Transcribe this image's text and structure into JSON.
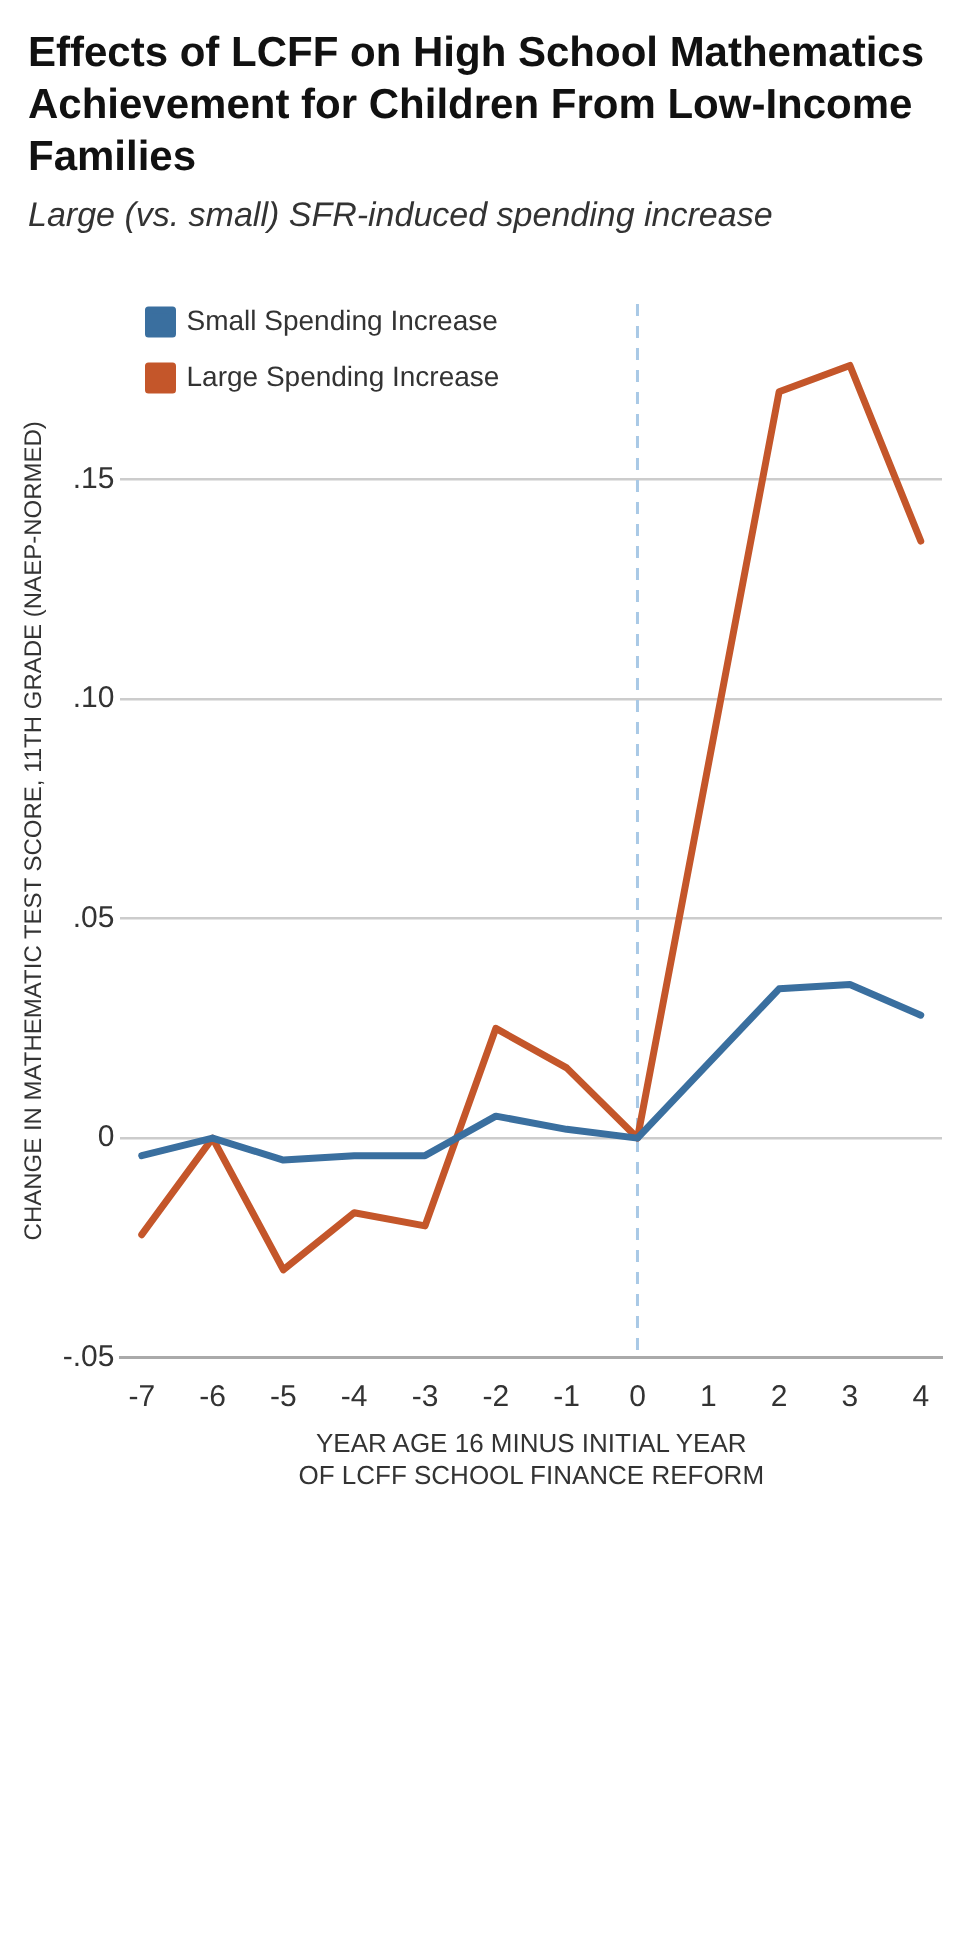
{
  "chart_data": {
    "type": "line",
    "title": "Effects of LCFF on High School Mathematics Achievement for Children From Low-Income Families",
    "subtitle": "Large (vs. small) SFR-induced spending increase",
    "xlabel": "YEAR AGE 16 MINUS INITIAL YEAR OF LCFF SCHOOL FINANCE REFORM",
    "ylabel": "CHANGE IN MATHEMATIC TEST SCORE, 11TH GRADE (NAEP-NORMED)",
    "x": [
      -7,
      -6,
      -5,
      -4,
      -3,
      -2,
      -1,
      0,
      2,
      3,
      4
    ],
    "series": [
      {
        "name": "Small Spending Increase",
        "color": "#3a6f9f",
        "values": [
          -0.004,
          0,
          -0.005,
          -0.004,
          -0.004,
          0.005,
          0.002,
          0,
          0.034,
          0.035,
          0.028
        ]
      },
      {
        "name": "Large Spending Increase",
        "color": "#c4562a",
        "values": [
          -0.022,
          0,
          -0.03,
          -0.017,
          -0.02,
          0.025,
          0.016,
          0,
          0.17,
          0.176,
          0.136
        ]
      }
    ],
    "xlim": [
      -7.3,
      4.3
    ],
    "xticks": [
      -7,
      -6,
      -5,
      -4,
      -3,
      -2,
      -1,
      0,
      1,
      2,
      3,
      4
    ],
    "ylim": [
      -0.05,
      0.19
    ],
    "yticks": [
      {
        "value": -0.05,
        "label": "-.05"
      },
      {
        "value": 0,
        "label": "0"
      },
      {
        "value": 0.05,
        "label": ".05"
      },
      {
        "value": 0.1,
        "label": ".10"
      },
      {
        "value": 0.15,
        "label": ".15"
      }
    ],
    "ref_lines": [
      {
        "axis": "x",
        "value": 0,
        "color": "#a9c9e6",
        "line_style": "dashed"
      }
    ],
    "grid": "y",
    "legend": "top left",
    "marker": "none",
    "line_style": "solid"
  }
}
